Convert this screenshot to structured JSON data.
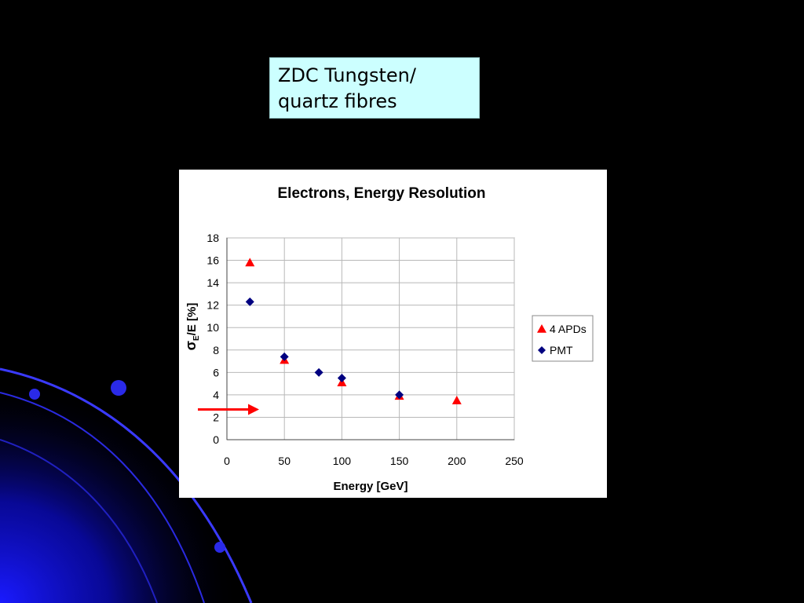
{
  "slide": {
    "label_line1": "ZDC Tungsten/",
    "label_line2": "quartz fibres",
    "label_bg": "#ccffff"
  },
  "chart_data": {
    "type": "scatter",
    "title": "Electrons, Energy Resolution",
    "xlabel": "Energy [GeV]",
    "ylabel_main": "σ",
    "ylabel_sub": "E",
    "ylabel_rest": "/E [%]",
    "xlim": [
      0,
      250
    ],
    "ylim": [
      0,
      18
    ],
    "xticks": [
      0,
      50,
      100,
      150,
      200,
      250
    ],
    "yticks": [
      0,
      2,
      4,
      6,
      8,
      10,
      12,
      14,
      16,
      18
    ],
    "grid": true,
    "legend_position": "right",
    "series": [
      {
        "name": "4 APDs",
        "marker": "triangle",
        "color": "#ff0000",
        "x": [
          20,
          50,
          100,
          150,
          200
        ],
        "y": [
          15.8,
          7.1,
          5.1,
          3.9,
          3.5
        ]
      },
      {
        "name": "PMT",
        "marker": "diamond",
        "color": "#000080",
        "x": [
          20,
          50,
          80,
          100,
          150
        ],
        "y": [
          12.3,
          7.4,
          6.0,
          5.5,
          4.0
        ]
      }
    ],
    "annotation": {
      "type": "arrow",
      "color": "#ff0000",
      "y": 2.7
    }
  }
}
